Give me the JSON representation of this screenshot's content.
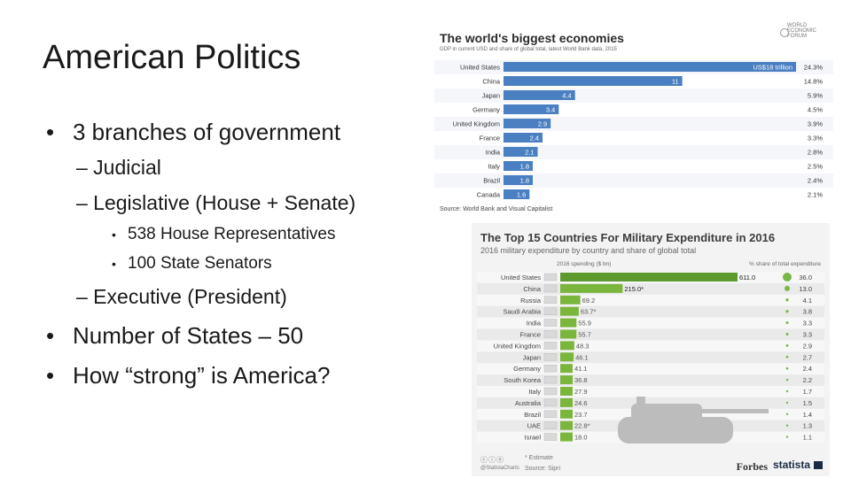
{
  "slide": {
    "title": "American Politics",
    "bullets": [
      {
        "text": "3 branches of government"
      },
      {
        "text": "– Judicial"
      },
      {
        "text": "– Legislative (House + Senate)"
      },
      {
        "text": "538 House Representatives"
      },
      {
        "text": "100 State Senators"
      },
      {
        "text": "– Executive (President)"
      },
      {
        "text": "Number of States – 50"
      },
      {
        "text": "How “strong” is America?"
      }
    ]
  },
  "colors": {
    "econ_bar": "#4a7fc1",
    "mil_bar": "#7ab53c",
    "mil_usa_bar": "#5c9a2e",
    "mil_dot": "#78b846",
    "tank": "#bcbcbc"
  },
  "chart_data": [
    {
      "type": "bar",
      "orientation": "horizontal",
      "title": "The world's biggest economies",
      "subtitle": "GDP in current USD and share of global total, latest World Bank data, 2015",
      "logo_lines": [
        "WORLD",
        "ECONOMIC",
        "FORUM"
      ],
      "source": "Source: World Bank and Visual Capitalist",
      "categories": [
        "United States",
        "China",
        "Japan",
        "Germany",
        "United Kingdom",
        "France",
        "India",
        "Italy",
        "Brazil",
        "Canada"
      ],
      "values": [
        18,
        11,
        4.4,
        3.4,
        2.9,
        2.4,
        2.1,
        1.8,
        1.8,
        1.6
      ],
      "value_labels": [
        "US$18 trillion",
        "11",
        "4.4",
        "3.4",
        "2.9",
        "2.4",
        "2.1",
        "1.8",
        "1.8",
        "1.6"
      ],
      "shares": [
        "24.3%",
        "14.8%",
        "5.9%",
        "4.5%",
        "3.9%",
        "3.3%",
        "2.8%",
        "2.5%",
        "2.4%",
        "2.1%"
      ],
      "xlim": [
        0,
        18
      ]
    },
    {
      "type": "bar",
      "orientation": "horizontal",
      "title": "The Top 15 Countries For Military Expenditure in 2016",
      "subtitle": "2016 military expenditure by country and share of global total",
      "col_header_spending": "2016 spending ($ bn)",
      "col_header_share": "% share of total expenditure",
      "categories": [
        "United States",
        "China",
        "Russia",
        "Saudi Arabia",
        "India",
        "France",
        "United Kingdom",
        "Japan",
        "Germany",
        "South Korea",
        "Italy",
        "Australia",
        "Brazil",
        "UAE",
        "Israel"
      ],
      "values": [
        611.0,
        215.0,
        69.2,
        63.7,
        55.9,
        55.7,
        48.3,
        46.1,
        41.1,
        36.8,
        27.9,
        24.6,
        23.7,
        22.8,
        18.0
      ],
      "value_labels": [
        "611.0",
        "215.0*",
        "69.2",
        "63.7*",
        "55.9",
        "55.7",
        "48.3",
        "46.1",
        "41.1",
        "36.8",
        "27.9",
        "24.6",
        "23.7",
        "22.8*",
        "18.0"
      ],
      "shares": [
        36.0,
        13.0,
        4.1,
        3.8,
        3.3,
        3.3,
        2.9,
        2.7,
        2.4,
        2.2,
        1.7,
        1.5,
        1.4,
        1.3,
        1.1
      ],
      "share_labels": [
        "36.0",
        "13.0",
        "4.1",
        "3.8",
        "3.3",
        "3.3",
        "2.9",
        "2.7",
        "2.4",
        "2.2",
        "1.7",
        "1.5",
        "1.4",
        "1.3",
        "1.1"
      ],
      "note": "* Estimate",
      "source": "Source: Sipri",
      "handle": "@StatistaCharts",
      "brands": [
        "Forbes",
        "statista"
      ],
      "xlim": [
        0,
        611
      ]
    }
  ]
}
